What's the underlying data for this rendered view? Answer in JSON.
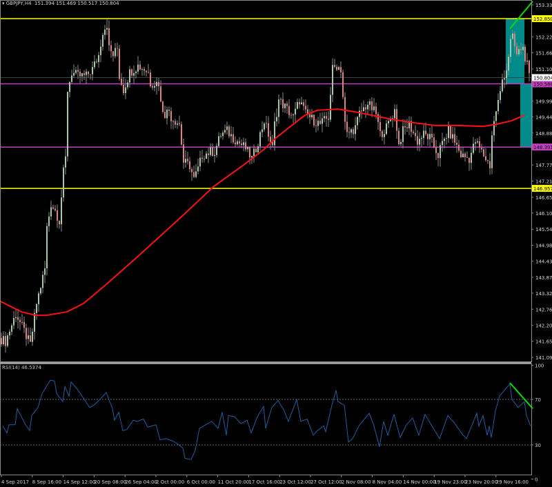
{
  "header": {
    "symbol": "GBPJPY,H4",
    "open": "151.394",
    "high": "151.469",
    "low": "150.517",
    "close": "150.804"
  },
  "colors": {
    "background": "#000000",
    "resistance": "#ffff00",
    "support_mid": "#c040c0",
    "ma": "#ff1010",
    "zone": "#008b8b",
    "trendline": "#00e000",
    "rsi": "#1e5ea8",
    "bull": "#a8c8a8",
    "bear": "#e08080"
  },
  "chart_data": [
    {
      "type": "candlestick",
      "symbol": "GBPJPY",
      "timeframe": "H4",
      "ylim": [
        141.09,
        153.33
      ],
      "price_ticks": [
        "153.330",
        "152.220",
        "151.660",
        "151.100",
        "149.990",
        "149.440",
        "148.880",
        "147.770",
        "147.210",
        "146.650",
        "146.100",
        "145.540",
        "144.980",
        "144.430",
        "143.870",
        "143.320",
        "142.760",
        "142.200",
        "141.650",
        "141.090"
      ],
      "time_ticks": [
        "4 Sep 2017",
        "8 Sep 16:00",
        "14 Sep 12:00",
        "20 Sep 08:00",
        "26 Sep 04:00",
        "2 Oct 00:00",
        "6 Oct 00:00",
        "11 Oct 20:00",
        "17 Oct 16:00",
        "23 Oct 12:00",
        "27 Oct 12:00",
        "2 Nov 08:00",
        "8 Nov 04:00",
        "14 Nov 00:00",
        "19 Nov 23:00",
        "23 Nov 20:00",
        "29 Nov 16:00"
      ],
      "bar_count": 256,
      "close_path": [
        [
          0,
          141.76
        ],
        [
          3,
          141.64
        ],
        [
          8,
          142.6
        ],
        [
          12,
          142.0
        ],
        [
          15,
          141.52
        ],
        [
          17,
          142.48
        ],
        [
          18,
          142.96
        ],
        [
          22,
          144.16
        ],
        [
          23,
          145.59
        ],
        [
          25,
          146.43
        ],
        [
          27,
          146.19
        ],
        [
          29,
          145.83
        ],
        [
          31,
          147.51
        ],
        [
          32,
          147.99
        ],
        [
          33,
          150.38
        ],
        [
          35,
          150.98
        ],
        [
          38,
          150.86
        ],
        [
          42,
          150.86
        ],
        [
          45,
          151.1
        ],
        [
          48,
          151.58
        ],
        [
          50,
          152.42
        ],
        [
          52,
          152.66
        ],
        [
          53,
          151.82
        ],
        [
          55,
          151.58
        ],
        [
          57,
          151.82
        ],
        [
          58,
          150.86
        ],
        [
          60,
          150.38
        ],
        [
          63,
          150.98
        ],
        [
          67,
          151.22
        ],
        [
          70,
          151.1
        ],
        [
          72,
          150.98
        ],
        [
          73,
          150.62
        ],
        [
          77,
          150.62
        ],
        [
          78,
          149.9
        ],
        [
          80,
          149.55
        ],
        [
          82,
          149.67
        ],
        [
          83,
          149.43
        ],
        [
          85,
          149.31
        ],
        [
          87,
          149.19
        ],
        [
          89,
          147.87
        ],
        [
          92,
          147.75
        ],
        [
          94,
          147.27
        ],
        [
          96,
          147.63
        ],
        [
          98,
          148.11
        ],
        [
          102,
          148.23
        ],
        [
          104,
          148.23
        ],
        [
          107,
          148.83
        ],
        [
          110,
          148.95
        ],
        [
          113,
          148.71
        ],
        [
          117,
          148.47
        ],
        [
          119,
          148.35
        ],
        [
          122,
          147.99
        ],
        [
          124,
          148.35
        ],
        [
          126,
          148.83
        ],
        [
          128,
          149.31
        ],
        [
          132,
          148.35
        ],
        [
          133,
          149.19
        ],
        [
          135,
          150.02
        ],
        [
          138,
          149.79
        ],
        [
          142,
          149.43
        ],
        [
          145,
          150.02
        ],
        [
          148,
          149.55
        ],
        [
          152,
          149.31
        ],
        [
          155,
          149.19
        ],
        [
          159,
          149.43
        ],
        [
          161,
          151.1
        ],
        [
          163,
          151.22
        ],
        [
          165,
          151.1
        ],
        [
          167,
          149.19
        ],
        [
          168,
          148.83
        ],
        [
          172,
          149.07
        ],
        [
          174,
          149.55
        ],
        [
          178,
          149.9
        ],
        [
          182,
          149.55
        ],
        [
          184,
          148.83
        ],
        [
          187,
          149.07
        ],
        [
          191,
          149.67
        ],
        [
          193,
          148.47
        ],
        [
          195,
          148.95
        ],
        [
          198,
          149.19
        ],
        [
          202,
          148.59
        ],
        [
          205,
          148.83
        ],
        [
          208,
          148.71
        ],
        [
          212,
          148.11
        ],
        [
          213,
          148.35
        ],
        [
          217,
          148.95
        ],
        [
          220,
          148.59
        ],
        [
          223,
          148.11
        ],
        [
          227,
          147.99
        ],
        [
          230,
          148.59
        ],
        [
          233,
          148.23
        ],
        [
          237,
          147.75
        ],
        [
          238,
          148.83
        ],
        [
          240,
          149.67
        ],
        [
          242,
          150.26
        ],
        [
          243,
          150.74
        ],
        [
          245,
          151.1
        ],
        [
          247,
          152.06
        ],
        [
          248,
          152.18
        ],
        [
          250,
          151.58
        ],
        [
          252,
          151.82
        ],
        [
          253,
          151.82
        ],
        [
          255,
          151.22
        ],
        [
          256,
          150.8
        ]
      ],
      "series": [
        {
          "name": "",
          "type": "moving-average",
          "points": [
            [
              0,
              143.03
            ],
            [
              10,
              142.67
            ],
            [
              17,
              142.55
            ],
            [
              22,
              142.55
            ],
            [
              32,
              142.67
            ],
            [
              40,
              142.96
            ],
            [
              50,
              143.56
            ],
            [
              67,
              144.64
            ],
            [
              87,
              145.95
            ],
            [
              103,
              147.03
            ],
            [
              117,
              147.75
            ],
            [
              127,
              148.3
            ],
            [
              133,
              148.71
            ],
            [
              140,
              149.11
            ],
            [
              147,
              149.5
            ],
            [
              153,
              149.67
            ],
            [
              163,
              149.71
            ],
            [
              173,
              149.59
            ],
            [
              187,
              149.38
            ],
            [
              200,
              149.23
            ],
            [
              210,
              149.14
            ],
            [
              220,
              149.14
            ],
            [
              233,
              149.11
            ],
            [
              240,
              149.19
            ],
            [
              247,
              149.31
            ],
            [
              253,
              149.5
            ]
          ]
        }
      ],
      "horizontal_levels": [
        {
          "price": "152.850",
          "color": "#ffff00"
        },
        {
          "price": "150.588",
          "color": "#c040c0"
        },
        {
          "price": "148.391",
          "color": "#c040c0"
        },
        {
          "price": "146.957",
          "color": "#ffff00"
        }
      ],
      "current_price": "150.804",
      "zones": [
        {
          "from_bar": 244,
          "to_bar": 253,
          "top": 152.85,
          "bottom": 150.588
        },
        {
          "from_bar": 251,
          "to_bar": 257,
          "top": 150.588,
          "bottom": 148.391
        }
      ],
      "trendline": {
        "from": [
          246,
          152.5
        ],
        "to": [
          257,
          153.45
        ]
      }
    },
    {
      "type": "line",
      "title": "RSI(14) 46.5374",
      "ylim": [
        0,
        100
      ],
      "levels": [
        "100",
        "70",
        "30",
        "0"
      ],
      "series": [
        {
          "name": "RSI(14)",
          "points": [
            [
              1,
              46.6
            ],
            [
              3,
              40.6
            ],
            [
              4,
              47.7
            ],
            [
              7,
              47.7
            ],
            [
              8,
              61.9
            ],
            [
              12,
              47.7
            ],
            [
              14,
              42.6
            ],
            [
              15,
              55.8
            ],
            [
              18,
              62.9
            ],
            [
              20,
              75.1
            ],
            [
              24,
              86.9
            ],
            [
              26,
              86.2
            ],
            [
              27,
              75.1
            ],
            [
              30,
              68.0
            ],
            [
              31,
              81.2
            ],
            [
              33,
              73.0
            ],
            [
              34,
              85.2
            ],
            [
              37,
              79.1
            ],
            [
              40,
              71.0
            ],
            [
              43,
              62.9
            ],
            [
              45,
              64.9
            ],
            [
              48,
              70.0
            ],
            [
              51,
              76.1
            ],
            [
              54,
              61.9
            ],
            [
              55,
              51.7
            ],
            [
              57,
              58.8
            ],
            [
              59,
              42.6
            ],
            [
              61,
              43.6
            ],
            [
              64,
              51.7
            ],
            [
              66,
              50.7
            ],
            [
              69,
              52.7
            ],
            [
              71,
              45.6
            ],
            [
              75,
              47.7
            ],
            [
              77,
              34.5
            ],
            [
              80,
              35.5
            ],
            [
              83,
              33.5
            ],
            [
              85,
              31.5
            ],
            [
              88,
              27.4
            ],
            [
              89,
              18.2
            ],
            [
              92,
              17.2
            ],
            [
              94,
              25.3
            ],
            [
              96,
              44.6
            ],
            [
              99,
              47.7
            ],
            [
              102,
              50.7
            ],
            [
              105,
              44.6
            ],
            [
              107,
              58.8
            ],
            [
              109,
              38.5
            ],
            [
              110,
              55.8
            ],
            [
              113,
              54.8
            ],
            [
              116,
              48.7
            ],
            [
              119,
              51.7
            ],
            [
              121,
              40.6
            ],
            [
              124,
              54.8
            ],
            [
              127,
              63.9
            ],
            [
              128,
              44.6
            ],
            [
              131,
              62.9
            ],
            [
              134,
              69.0
            ],
            [
              137,
              59.8
            ],
            [
              139,
              50.7
            ],
            [
              143,
              70.0
            ],
            [
              145,
              50.7
            ],
            [
              148,
              52.7
            ],
            [
              151,
              38.5
            ],
            [
              153,
              42.6
            ],
            [
              156,
              46.6
            ],
            [
              157,
              41.6
            ],
            [
              160,
              64.9
            ],
            [
              162,
              78.1
            ],
            [
              163,
              68.0
            ],
            [
              166,
              64.9
            ],
            [
              168,
              32.4
            ],
            [
              170,
              35.5
            ],
            [
              173,
              46.6
            ],
            [
              178,
              57.8
            ],
            [
              180,
              48.7
            ],
            [
              183,
              28.4
            ],
            [
              185,
              50.7
            ],
            [
              187,
              38.5
            ],
            [
              190,
              56.8
            ],
            [
              193,
              36.5
            ],
            [
              196,
              47.7
            ],
            [
              199,
              53.7
            ],
            [
              202,
              38.5
            ],
            [
              205,
              56.8
            ],
            [
              207,
              50.7
            ],
            [
              212,
              35.5
            ],
            [
              216,
              55.8
            ],
            [
              219,
              49.7
            ],
            [
              223,
              39.5
            ],
            [
              225,
              35.5
            ],
            [
              230,
              57.8
            ],
            [
              231,
              46.6
            ],
            [
              233,
              55.8
            ],
            [
              235,
              38.5
            ],
            [
              236,
              46.6
            ],
            [
              237,
              36.5
            ],
            [
              239,
              59.8
            ],
            [
              241,
              73.0
            ],
            [
              246,
              83.6
            ],
            [
              247,
              70.0
            ],
            [
              250,
              62.9
            ],
            [
              253,
              68.0
            ],
            [
              254,
              55.8
            ],
            [
              256,
              46.5
            ]
          ]
        }
      ],
      "trendline": {
        "from": [
          246,
          84.5
        ],
        "to": [
          257,
          62
        ]
      }
    }
  ]
}
